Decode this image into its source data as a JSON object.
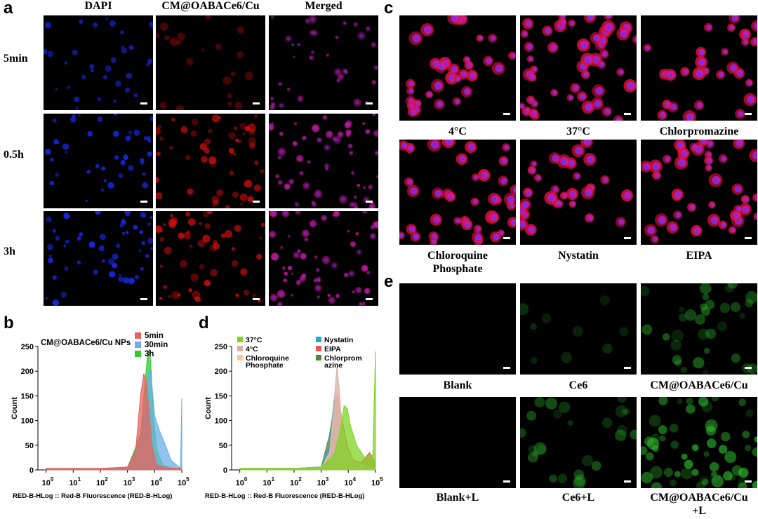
{
  "panel_a": {
    "label": "a",
    "columns": [
      "DAPI",
      "CM@OABACe6/Cu",
      "Merged"
    ],
    "rows": [
      "5min",
      "0.5h",
      "3h"
    ],
    "channels": [
      "blue",
      "red",
      "merged"
    ],
    "intensity": [
      [
        0.35,
        0.05,
        0.4
      ],
      [
        0.6,
        0.8,
        0.9
      ],
      [
        0.8,
        0.85,
        1.0
      ]
    ]
  },
  "panel_b": {
    "label": "b",
    "chart_data": {
      "type": "area",
      "title": "CM@OABACe6/Cu NPs",
      "xlabel": "RED-B-HLog :: Red-B Fluorescence (RED-B-HLog)",
      "ylabel": "Count",
      "xscale": "log",
      "xlim": [
        0.5,
        100000
      ],
      "ylim": [
        0,
        250
      ],
      "x_ticks": [
        "0",
        "1",
        "2",
        "3",
        "4",
        "5"
      ],
      "y_ticks": [
        0,
        50,
        100,
        150,
        200,
        250
      ],
      "legend": "top-right",
      "series": [
        {
          "name": "5min",
          "color": "#e8625e",
          "points": [
            [
              1,
              3
            ],
            [
              10,
              3
            ],
            [
              100,
              3
            ],
            [
              1000,
              6
            ],
            [
              2000,
              40
            ],
            [
              3000,
              150
            ],
            [
              4000,
              195
            ],
            [
              5000,
              180
            ],
            [
              6000,
              130
            ],
            [
              8000,
              50
            ],
            [
              12000,
              10
            ],
            [
              30000,
              4
            ],
            [
              100000,
              3
            ]
          ]
        },
        {
          "name": "30min",
          "color": "#6aaee8",
          "points": [
            [
              1,
              3
            ],
            [
              10,
              3
            ],
            [
              100,
              3
            ],
            [
              1000,
              5
            ],
            [
              3000,
              60
            ],
            [
              5000,
              170
            ],
            [
              6500,
              210
            ],
            [
              8000,
              170
            ],
            [
              10000,
              110
            ],
            [
              15000,
              80
            ],
            [
              25000,
              50
            ],
            [
              40000,
              20
            ],
            [
              70000,
              8
            ],
            [
              90000,
              5
            ],
            [
              100000,
              145
            ]
          ]
        },
        {
          "name": "3h",
          "color": "#2ecc2e",
          "points": [
            [
              1,
              3
            ],
            [
              10,
              3
            ],
            [
              100,
              3
            ],
            [
              1000,
              5
            ],
            [
              3000,
              70
            ],
            [
              4500,
              180
            ],
            [
              5500,
              235
            ],
            [
              6500,
              245
            ],
            [
              7500,
              200
            ],
            [
              9000,
              110
            ],
            [
              12000,
              40
            ],
            [
              20000,
              10
            ],
            [
              40000,
              4
            ],
            [
              100000,
              3
            ]
          ]
        }
      ]
    }
  },
  "panel_c": {
    "label": "c",
    "captions": [
      "4°C",
      "37°C",
      "Chlorpromazine",
      "Chloroquine\nPhosphate",
      "Nystatin",
      "EIPA"
    ],
    "density": [
      0.6,
      1.0,
      0.45,
      0.75,
      0.5,
      0.8
    ]
  },
  "panel_d": {
    "label": "d",
    "chart_data": {
      "type": "area",
      "title": "",
      "xlabel": "RED-B-HLog :: Red-B Fluorescence (RED-B-HLog)",
      "ylabel": "Count",
      "xscale": "log",
      "xlim": [
        0.5,
        100000
      ],
      "ylim": [
        0,
        250
      ],
      "x_ticks": [
        "0",
        "1",
        "2",
        "3",
        "4",
        "5"
      ],
      "y_ticks": [
        0,
        50,
        100,
        150,
        200,
        250
      ],
      "legend": "top",
      "series": [
        {
          "name": "37°C",
          "color": "#7ed321",
          "points": [
            [
              1,
              3
            ],
            [
              100,
              3
            ],
            [
              1000,
              6
            ],
            [
              3000,
              30
            ],
            [
              5000,
              80
            ],
            [
              7000,
              130
            ],
            [
              9000,
              125
            ],
            [
              12000,
              90
            ],
            [
              20000,
              50
            ],
            [
              40000,
              25
            ],
            [
              80000,
              30
            ],
            [
              100000,
              240
            ]
          ]
        },
        {
          "name": "4°C",
          "color": "#d9b0a8",
          "points": [
            [
              1,
              3
            ],
            [
              100,
              3
            ],
            [
              1000,
              5
            ],
            [
              2000,
              30
            ],
            [
              3000,
              140
            ],
            [
              3800,
              210
            ],
            [
              4500,
              170
            ],
            [
              5500,
              100
            ],
            [
              7000,
              60
            ],
            [
              10000,
              30
            ],
            [
              20000,
              10
            ],
            [
              100000,
              3
            ]
          ]
        },
        {
          "name": "Chloroquine Phosphate",
          "color": "#f7c89a",
          "points": [
            [
              1,
              3
            ],
            [
              100,
              3
            ],
            [
              1000,
              5
            ],
            [
              2000,
              35
            ],
            [
              3000,
              120
            ],
            [
              4000,
              160
            ],
            [
              5000,
              130
            ],
            [
              6000,
              90
            ],
            [
              8000,
              50
            ],
            [
              15000,
              15
            ],
            [
              100000,
              3
            ]
          ]
        },
        {
          "name": "Nystatin",
          "color": "#2ba6cc",
          "points": [
            [
              1,
              3
            ],
            [
              100,
              3
            ],
            [
              1000,
              6
            ],
            [
              2000,
              50
            ],
            [
              3000,
              145
            ],
            [
              4000,
              120
            ],
            [
              5000,
              80
            ],
            [
              7000,
              40
            ],
            [
              12000,
              12
            ],
            [
              100000,
              3
            ]
          ]
        },
        {
          "name": "EIPA",
          "color": "#e65a5a",
          "points": [
            [
              1,
              3
            ],
            [
              100,
              3
            ],
            [
              1000,
              6
            ],
            [
              2500,
              60
            ],
            [
              3500,
              150
            ],
            [
              4500,
              140
            ],
            [
              6000,
              100
            ],
            [
              9000,
              50
            ],
            [
              15000,
              20
            ],
            [
              30000,
              15
            ],
            [
              60000,
              35
            ],
            [
              90000,
              20
            ],
            [
              100000,
              5
            ]
          ]
        },
        {
          "name": "Chlorpromazine",
          "color": "#4e8a3a",
          "points": [
            [
              1,
              3
            ],
            [
              100,
              3
            ],
            [
              1000,
              6
            ],
            [
              2000,
              70
            ],
            [
              3000,
              130
            ],
            [
              4000,
              95
            ],
            [
              5500,
              55
            ],
            [
              8000,
              20
            ],
            [
              15000,
              6
            ],
            [
              100000,
              3
            ]
          ]
        }
      ],
      "legend_labels": [
        "37°C",
        "4°C",
        "Chloroquine\nPhosphate",
        "Nystatin",
        "EIPA",
        "Chlorprom\nazine"
      ]
    }
  },
  "panel_e": {
    "label": "e",
    "captions": [
      "Blank",
      "Ce6",
      "CM@OABACe6/Cu",
      "Blank+L",
      "Ce6+L",
      "CM@OABACe6/Cu\n+L"
    ],
    "density": [
      0.0,
      0.15,
      0.55,
      0.0,
      0.45,
      0.95
    ]
  }
}
